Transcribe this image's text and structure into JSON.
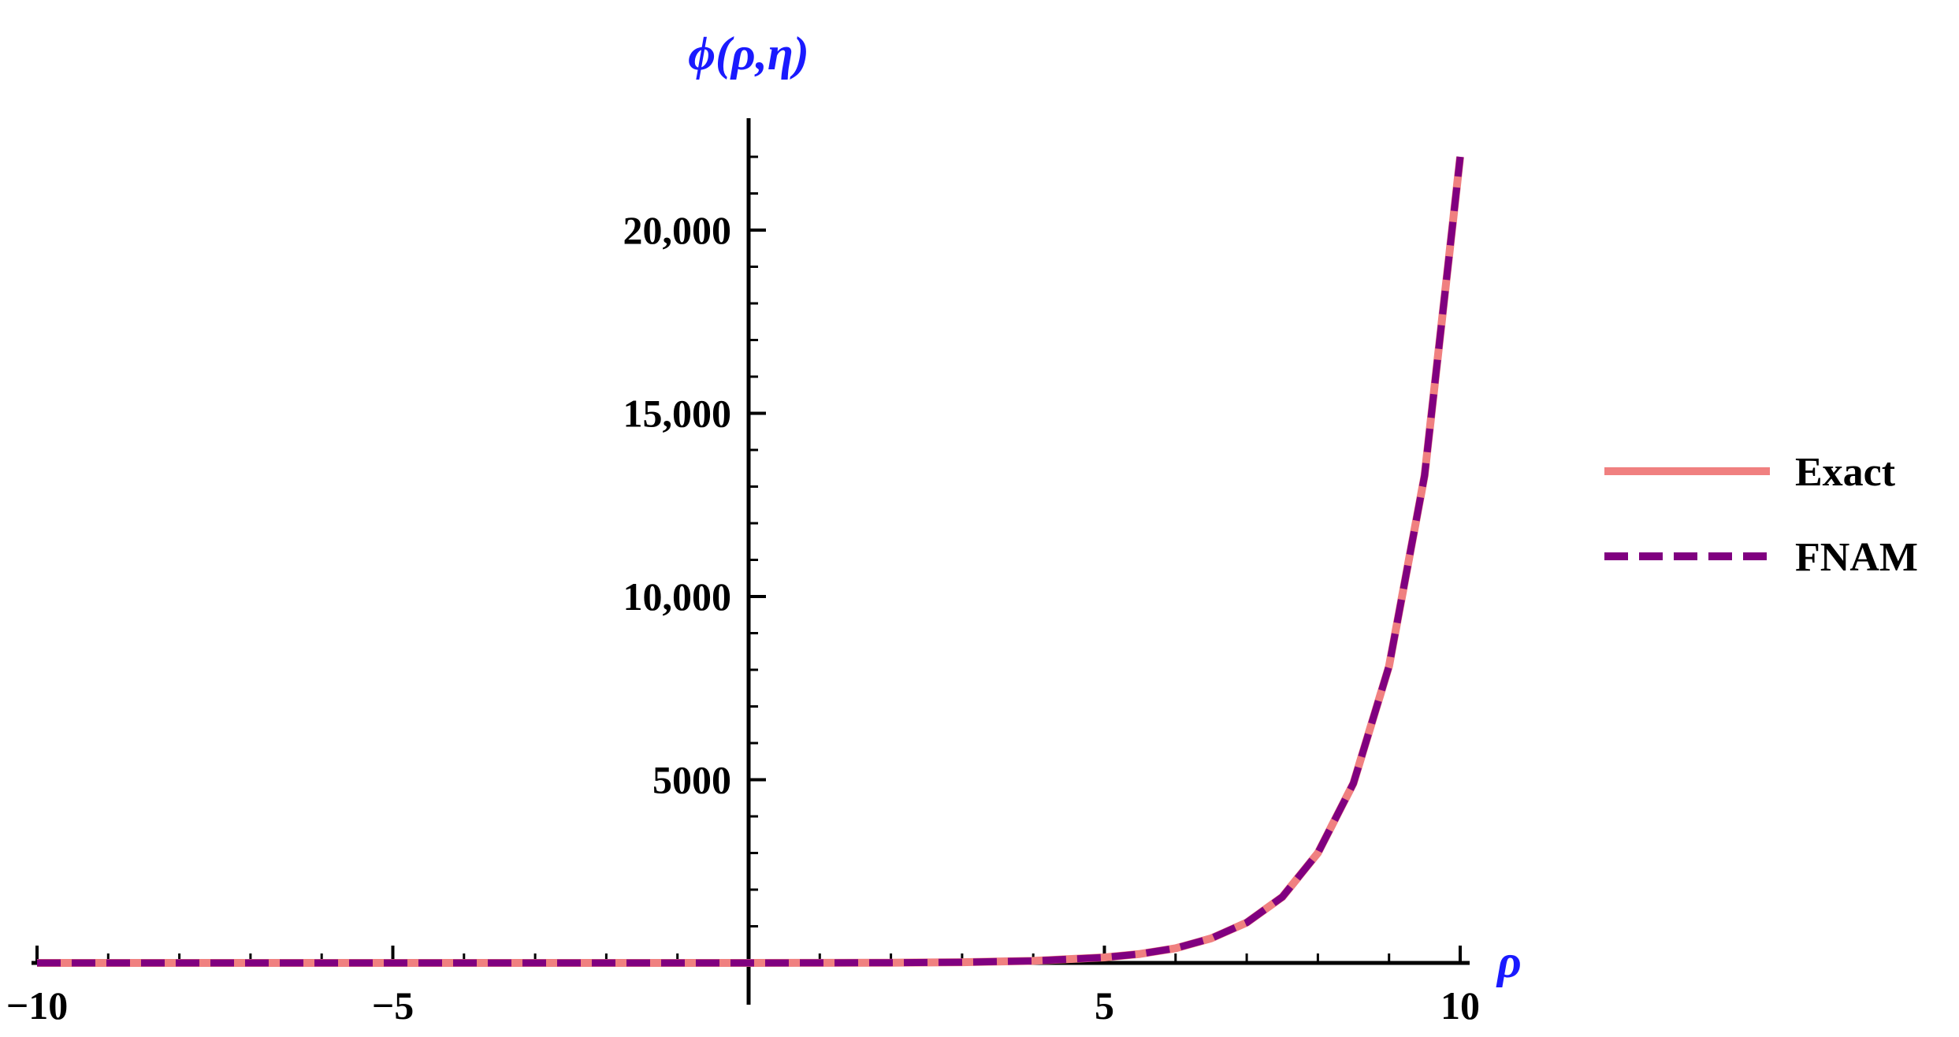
{
  "chart_data": {
    "type": "line",
    "xlabel": "ρ",
    "ylabel": "ϕ(ρ,η)",
    "xlim": [
      -10.8,
      10.8
    ],
    "ylim": [
      -900,
      23000
    ],
    "x_ticks": [
      {
        "value": -10,
        "label": "−10"
      },
      {
        "value": -5,
        "label": "−5"
      },
      {
        "value": 5,
        "label": "5"
      },
      {
        "value": 10,
        "label": "10"
      }
    ],
    "y_ticks": [
      {
        "value": 5000,
        "label": "5000"
      },
      {
        "value": 10000,
        "label": "10,000"
      },
      {
        "value": 15000,
        "label": "15,000"
      },
      {
        "value": 20000,
        "label": "20,000"
      }
    ],
    "legend_position": "right",
    "series": [
      {
        "name": "Exact",
        "color": "#f08080",
        "style": "solid",
        "x": [
          -10,
          -8,
          -6,
          -4,
          -2,
          0,
          1,
          2,
          3,
          4,
          5,
          5.5,
          6,
          6.5,
          7,
          7.5,
          8,
          8.5,
          9,
          9.5,
          10
        ],
        "y": [
          0,
          0,
          0,
          0,
          0,
          1,
          3,
          7,
          20,
          55,
          150,
          245,
          400,
          670,
          1100,
          1800,
          3000,
          4900,
          8100,
          13300,
          22000
        ]
      },
      {
        "name": "FNAM",
        "color": "#800080",
        "style": "dashed",
        "x": [
          -10,
          -8,
          -6,
          -4,
          -2,
          0,
          1,
          2,
          3,
          4,
          5,
          5.5,
          6,
          6.5,
          7,
          7.5,
          8,
          8.5,
          9,
          9.5,
          10
        ],
        "y": [
          0,
          0,
          0,
          0,
          0,
          1,
          3,
          7,
          20,
          55,
          150,
          245,
          400,
          670,
          1100,
          1800,
          3000,
          4900,
          8100,
          13300,
          22000
        ]
      }
    ]
  }
}
